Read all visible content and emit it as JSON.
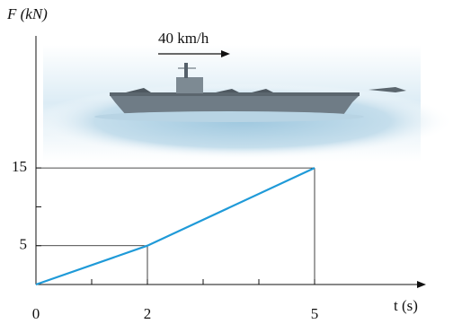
{
  "chart_data": {
    "type": "line",
    "x_label": "t (s)",
    "y_label": "F (kN)",
    "annotation": "40 km/h",
    "x": [
      0,
      2,
      5
    ],
    "values": [
      0,
      5,
      15
    ],
    "color": "#1f9ad8",
    "xlim": [
      0,
      7
    ],
    "ylim": [
      0,
      32
    ],
    "xticks": [
      0,
      2,
      5
    ],
    "yticks": [
      5,
      15
    ],
    "minor_xticks": [
      1,
      3,
      4
    ],
    "minor_yticks": [
      10
    ]
  }
}
